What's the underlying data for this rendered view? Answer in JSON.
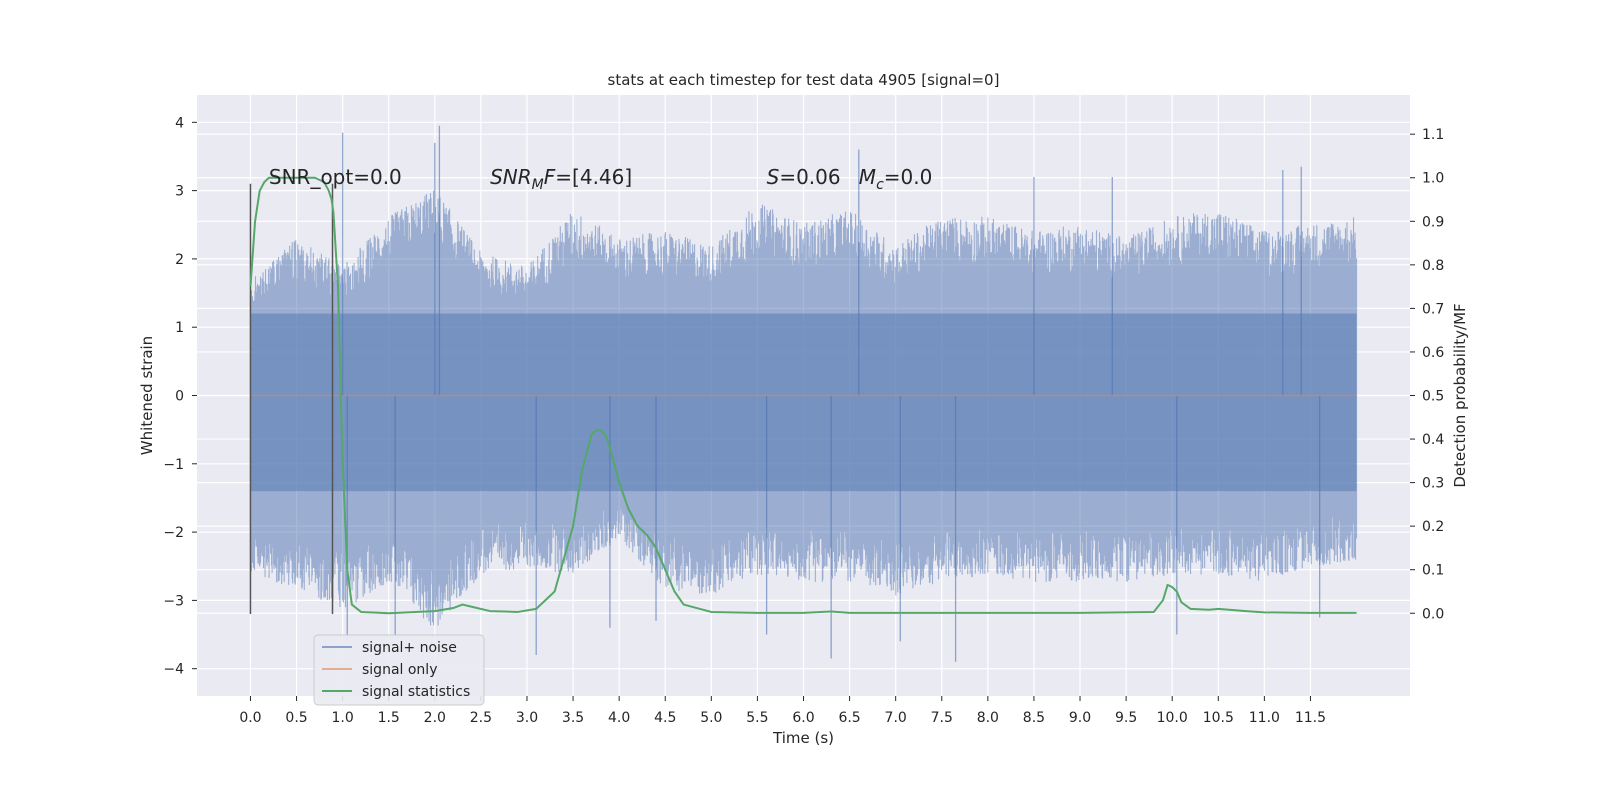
{
  "chart_data": {
    "type": "line",
    "title": "stats at each timestep for test data 4905 [signal=0]",
    "xlabel": "Time (s)",
    "ylabel": "Whitened strain",
    "y2label": "Detection probability/MF",
    "xlim": [
      -0.58,
      12.58
    ],
    "ylim": [
      -4.4,
      4.4
    ],
    "y2lim": [
      -0.19,
      1.19
    ],
    "x_ticks": [
      0.0,
      0.5,
      1.0,
      1.5,
      2.0,
      2.5,
      3.0,
      3.5,
      4.0,
      4.5,
      5.0,
      5.5,
      6.0,
      6.5,
      7.0,
      7.5,
      8.0,
      8.5,
      9.0,
      9.5,
      10.0,
      10.5,
      11.0,
      11.5
    ],
    "x_tick_labels": [
      "0.0",
      "0.5",
      "1.0",
      "1.5",
      "2.0",
      "2.5",
      "3.0",
      "3.5",
      "4.0",
      "4.5",
      "5.0",
      "5.5",
      "6.0",
      "6.5",
      "7.0",
      "7.5",
      "8.0",
      "8.5",
      "9.0",
      "9.5",
      "10.0",
      "10.5",
      "11.0",
      "11.5"
    ],
    "y_ticks": [
      -4,
      -3,
      -2,
      -1,
      0,
      1,
      2,
      3,
      4
    ],
    "y_tick_labels": [
      "−4",
      "−3",
      "−2",
      "−1",
      "0",
      "1",
      "2",
      "3",
      "4"
    ],
    "y2_ticks": [
      0.0,
      0.1,
      0.2,
      0.3,
      0.4,
      0.5,
      0.6,
      0.7,
      0.8,
      0.9,
      1.0,
      1.1
    ],
    "y2_tick_labels": [
      "0.0",
      "0.1",
      "0.2",
      "0.3",
      "0.4",
      "0.5",
      "0.6",
      "0.7",
      "0.8",
      "0.9",
      "1.0",
      "1.1"
    ],
    "grid": true,
    "legend_position": "bottom-left",
    "series": [
      {
        "name": "signal+ noise",
        "axis": "left",
        "color": "#4c72b0",
        "x_range": [
          0.0,
          12.0
        ],
        "envelope_upper": [
          1.6,
          2.2,
          1.8,
          2.5,
          2.9,
          2.0,
          1.8,
          2.6,
          2.2,
          2.3,
          2.1,
          2.7,
          2.4,
          2.6,
          2.1,
          2.5,
          2.5,
          2.3,
          2.4,
          2.2,
          2.5,
          2.6,
          2.3,
          2.4,
          2.5
        ],
        "envelope_lower": [
          -2.5,
          -2.7,
          -3.0,
          -2.6,
          -3.3,
          -2.5,
          -2.4,
          -2.5,
          -2.0,
          -2.7,
          -2.8,
          -2.5,
          -2.6,
          -2.6,
          -2.8,
          -2.6,
          -2.5,
          -2.6,
          -2.6,
          -2.6,
          -2.5,
          -2.5,
          -2.6,
          -2.4,
          -2.3
        ],
        "spikes": [
          [
            1.0,
            3.85
          ],
          [
            1.05,
            -3.6
          ],
          [
            2.05,
            3.95
          ],
          [
            2.0,
            3.7
          ],
          [
            1.57,
            -3.5
          ],
          [
            3.1,
            -3.8
          ],
          [
            3.9,
            -3.4
          ],
          [
            4.4,
            -3.3
          ],
          [
            5.6,
            -3.5
          ],
          [
            6.3,
            -3.85
          ],
          [
            6.6,
            3.6
          ],
          [
            7.05,
            -3.6
          ],
          [
            7.65,
            -3.9
          ],
          [
            8.5,
            3.2
          ],
          [
            9.35,
            3.2
          ],
          [
            10.05,
            -3.5
          ],
          [
            11.2,
            3.3
          ],
          [
            11.4,
            3.35
          ],
          [
            11.6,
            -3.25
          ]
        ]
      },
      {
        "name": "signal only",
        "axis": "left",
        "color": "#dd8452",
        "x_range": [
          0.0,
          12.0
        ],
        "values": [
          0.0,
          0.0
        ]
      },
      {
        "name": "signal statistics",
        "axis": "right",
        "color": "#55a868",
        "x": [
          0.0,
          0.05,
          0.1,
          0.15,
          0.2,
          0.3,
          0.5,
          0.7,
          0.8,
          0.85,
          0.88,
          0.9,
          0.95,
          1.0,
          1.05,
          1.1,
          1.2,
          1.5,
          1.7,
          2.0,
          2.2,
          2.3,
          2.4,
          2.6,
          2.9,
          3.1,
          3.3,
          3.5,
          3.6,
          3.7,
          3.75,
          3.8,
          3.85,
          3.9,
          4.0,
          4.1,
          4.2,
          4.3,
          4.4,
          4.5,
          4.6,
          4.7,
          5.0,
          5.5,
          6.0,
          6.3,
          6.5,
          7.0,
          8.0,
          9.0,
          9.8,
          9.9,
          9.95,
          10.0,
          10.05,
          10.1,
          10.2,
          10.4,
          10.5,
          10.8,
          11.0,
          11.5,
          11.9,
          12.0
        ],
        "values": [
          0.75,
          0.9,
          0.97,
          0.99,
          1.0,
          1.0,
          1.0,
          1.0,
          0.99,
          0.97,
          0.95,
          0.92,
          0.75,
          0.35,
          0.1,
          0.02,
          0.003,
          0.0,
          0.002,
          0.005,
          0.012,
          0.02,
          0.015,
          0.005,
          0.003,
          0.01,
          0.05,
          0.2,
          0.33,
          0.41,
          0.42,
          0.42,
          0.41,
          0.38,
          0.3,
          0.24,
          0.2,
          0.18,
          0.15,
          0.1,
          0.05,
          0.02,
          0.003,
          0.001,
          0.001,
          0.004,
          0.001,
          0.001,
          0.001,
          0.001,
          0.003,
          0.03,
          0.065,
          0.06,
          0.05,
          0.025,
          0.01,
          0.008,
          0.01,
          0.005,
          0.002,
          0.001,
          0.001,
          0.001
        ]
      }
    ],
    "markers": [
      0.0,
      0.89
    ],
    "marker_color": "#555555",
    "annotations": [
      {
        "name": "snr-opt-annotation",
        "x": 0.2,
        "y": 3.1,
        "text": "SNR_opt=0.0"
      },
      {
        "name": "snr-mf-annotation",
        "x": 2.6,
        "y": 3.1,
        "text_parts": [
          {
            "t": "SNR",
            "i": true
          },
          {
            "t": "M",
            "i": true,
            "sub": true
          },
          {
            "t": "F",
            "i": true
          },
          {
            "t": "=[4.46]",
            "i": false
          }
        ]
      },
      {
        "name": "s-annotation",
        "x": 5.6,
        "y": 3.1,
        "text_parts": [
          {
            "t": "S",
            "i": true
          },
          {
            "t": "=0.06",
            "i": false
          }
        ]
      },
      {
        "name": "mc-annotation",
        "x": 6.6,
        "y": 3.1,
        "text_parts": [
          {
            "t": "M",
            "i": true
          },
          {
            "t": "c",
            "i": true,
            "sub": true
          },
          {
            "t": "=0.0",
            "i": false
          }
        ]
      }
    ]
  }
}
